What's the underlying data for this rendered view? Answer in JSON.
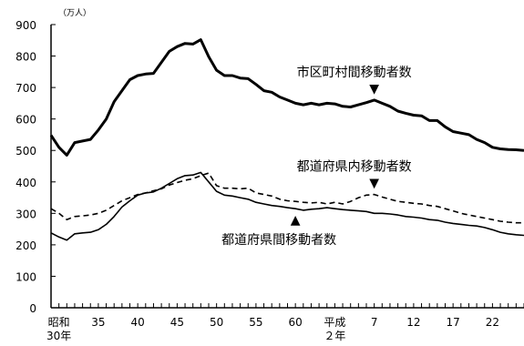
{
  "chart_data": {
    "type": "line",
    "unit_label": "（万人）",
    "ylim": [
      0,
      900
    ],
    "y_ticks": [
      0,
      100,
      200,
      300,
      400,
      500,
      600,
      700,
      800,
      900
    ],
    "x_range": [
      1954,
      2014
    ],
    "x_tick_labels": [
      {
        "year": 1955,
        "lines": [
          "昭和",
          "30年"
        ]
      },
      {
        "year": 1960,
        "lines": [
          "35"
        ]
      },
      {
        "year": 1965,
        "lines": [
          "40"
        ]
      },
      {
        "year": 1970,
        "lines": [
          "45"
        ]
      },
      {
        "year": 1975,
        "lines": [
          "50"
        ]
      },
      {
        "year": 1980,
        "lines": [
          "55"
        ]
      },
      {
        "year": 1985,
        "lines": [
          "60"
        ]
      },
      {
        "year": 1990,
        "lines": [
          "平成",
          "２年"
        ]
      },
      {
        "year": 1995,
        "lines": [
          "7"
        ]
      },
      {
        "year": 2000,
        "lines": [
          "12"
        ]
      },
      {
        "year": 2005,
        "lines": [
          "17"
        ]
      },
      {
        "year": 2010,
        "lines": [
          "22"
        ]
      }
    ],
    "x": [
      1954,
      1955,
      1956,
      1957,
      1958,
      1959,
      1960,
      1961,
      1962,
      1963,
      1964,
      1965,
      1966,
      1967,
      1968,
      1969,
      1970,
      1971,
      1972,
      1973,
      1974,
      1975,
      1976,
      1977,
      1978,
      1979,
      1980,
      1981,
      1982,
      1983,
      1984,
      1985,
      1986,
      1987,
      1988,
      1989,
      1990,
      1991,
      1992,
      1993,
      1994,
      1995,
      1996,
      1997,
      1998,
      1999,
      2000,
      2001,
      2002,
      2003,
      2004,
      2005,
      2006,
      2007,
      2008,
      2009,
      2010,
      2011,
      2012,
      2013,
      2014
    ],
    "series": [
      {
        "name": "市区町村間移動者数",
        "style": "solid",
        "width": 3,
        "values": [
          548,
          510,
          485,
          525,
          530,
          535,
          565,
          600,
          655,
          690,
          725,
          738,
          743,
          745,
          780,
          815,
          830,
          840,
          838,
          852,
          798,
          755,
          738,
          738,
          730,
          728,
          710,
          690,
          685,
          670,
          660,
          650,
          645,
          650,
          645,
          650,
          648,
          640,
          638,
          645,
          652,
          660,
          650,
          640,
          625,
          618,
          612,
          610,
          595,
          595,
          575,
          560,
          555,
          550,
          535,
          525,
          510,
          505,
          503,
          502,
          500
        ]
      },
      {
        "name": "都道府県内移動者数",
        "style": "dashed",
        "width": 1.6,
        "values": [
          315,
          300,
          280,
          290,
          292,
          295,
          300,
          310,
          325,
          340,
          350,
          360,
          365,
          372,
          378,
          390,
          398,
          405,
          410,
          420,
          428,
          388,
          380,
          380,
          378,
          380,
          365,
          360,
          355,
          345,
          340,
          338,
          335,
          333,
          335,
          330,
          335,
          330,
          338,
          350,
          358,
          360,
          352,
          345,
          338,
          335,
          332,
          330,
          325,
          322,
          315,
          308,
          300,
          295,
          290,
          285,
          280,
          275,
          272,
          270,
          270
        ]
      },
      {
        "name": "都道府県間移動者数",
        "style": "solid",
        "width": 1.6,
        "values": [
          238,
          225,
          215,
          235,
          238,
          240,
          248,
          265,
          290,
          320,
          340,
          358,
          365,
          368,
          380,
          395,
          410,
          420,
          422,
          430,
          400,
          370,
          358,
          355,
          350,
          345,
          335,
          330,
          325,
          322,
          318,
          315,
          310,
          313,
          315,
          318,
          315,
          312,
          310,
          308,
          306,
          300,
          300,
          298,
          295,
          290,
          288,
          285,
          280,
          278,
          272,
          268,
          265,
          262,
          260,
          255,
          248,
          240,
          235,
          232,
          230
        ]
      }
    ],
    "annotations": [
      {
        "series": 0,
        "text": "市区町村間移動者数",
        "year": 1995,
        "marker": "▼"
      },
      {
        "series": 1,
        "text": "都道府県内移動者数",
        "year": 1995,
        "marker": "▼"
      },
      {
        "series": 2,
        "text": "都道府県間移動者数",
        "year": 1985,
        "marker": "▲"
      }
    ],
    "grid": false,
    "legend": "none"
  }
}
